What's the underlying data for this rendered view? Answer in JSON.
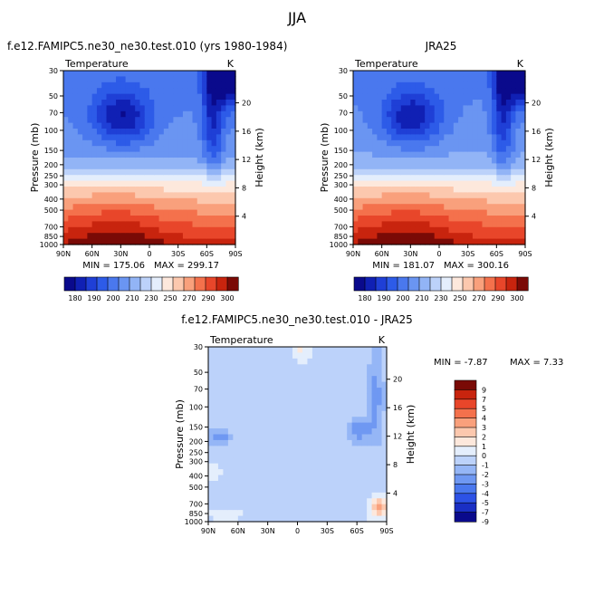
{
  "figure": {
    "title": "JJA",
    "colors": {
      "temp_scale": [
        "#0a0a8c",
        "#1020b4",
        "#1f3fd6",
        "#2d5be8",
        "#4a78ee",
        "#6a95f2",
        "#92b4f6",
        "#bcd2fa",
        "#e4eefc",
        "#fde8dc",
        "#fcc8ae",
        "#f9a07c",
        "#f4714c",
        "#e8462a",
        "#c8240e",
        "#7a0a06"
      ],
      "diff_scale": [
        "#0a0a8c",
        "#1a2fc4",
        "#2d52e6",
        "#4a78ee",
        "#6f98f2",
        "#95b6f6",
        "#bcd2fa",
        "#e4eefc",
        "#fde8dc",
        "#fcc8ae",
        "#f9a07c",
        "#f4714c",
        "#e8462a",
        "#c8240e",
        "#7a0a06"
      ]
    }
  },
  "chart_data": [
    {
      "type": "heatmap",
      "title": "f.e12.FAMIPC5.ne30_ne30.test.010 (yrs 1980-1984)",
      "subtitle": "Temperature",
      "units": "K",
      "ylabel": "Pressure (mb)",
      "y2label": "Height (km)",
      "x_ticks": [
        "90N",
        "60N",
        "30N",
        "0",
        "30S",
        "60S",
        "90S"
      ],
      "y_ticks": [
        "30",
        "50",
        "70",
        "100",
        "150",
        "200",
        "250",
        "300",
        "400",
        "500",
        "700",
        "850",
        "1000"
      ],
      "y2_ticks": [
        "20",
        "16",
        "12",
        "8",
        "4"
      ],
      "min_label": "MIN = 175.06",
      "max_label": "MAX = 299.17",
      "min": 175.06,
      "max": 299.17,
      "colorbar_labels": [
        "180",
        "190",
        "200",
        "210",
        "230",
        "250",
        "270",
        "290",
        "300"
      ]
    },
    {
      "type": "heatmap",
      "title": "JRA25",
      "subtitle": "Temperature",
      "units": "K",
      "ylabel": "Pressure (mb)",
      "y2label": "Height (km)",
      "x_ticks": [
        "90N",
        "60N",
        "30N",
        "0",
        "30S",
        "60S",
        "90S"
      ],
      "y_ticks": [
        "30",
        "50",
        "70",
        "100",
        "150",
        "200",
        "250",
        "300",
        "400",
        "500",
        "700",
        "850",
        "1000"
      ],
      "y2_ticks": [
        "20",
        "16",
        "12",
        "8",
        "4"
      ],
      "min_label": "MIN = 181.07",
      "max_label": "MAX = 300.16",
      "min": 181.07,
      "max": 300.16,
      "colorbar_labels": [
        "180",
        "190",
        "200",
        "210",
        "230",
        "250",
        "270",
        "290",
        "300"
      ]
    },
    {
      "type": "heatmap",
      "title": "f.e12.FAMIPC5.ne30_ne30.test.010 - JRA25",
      "subtitle": "Temperature",
      "units": "K",
      "ylabel": "Pressure (mb)",
      "y2label": "Height (km)",
      "x_ticks": [
        "90N",
        "60N",
        "30N",
        "0",
        "30S",
        "60S",
        "90S"
      ],
      "y_ticks": [
        "30",
        "50",
        "70",
        "100",
        "150",
        "200",
        "250",
        "300",
        "400",
        "500",
        "700",
        "850",
        "1000"
      ],
      "y2_ticks": [
        "20",
        "16",
        "12",
        "8",
        "4"
      ],
      "min_label": "MIN =   -7.87",
      "max_label": "MAX =    7.33",
      "min": -7.87,
      "max": 7.33,
      "colorbar_labels": [
        "9",
        "7",
        "5",
        "4",
        "3",
        "2",
        "1",
        "0",
        "-1",
        "-2",
        "-3",
        "-4",
        "-5",
        "-7",
        "-9"
      ]
    }
  ]
}
